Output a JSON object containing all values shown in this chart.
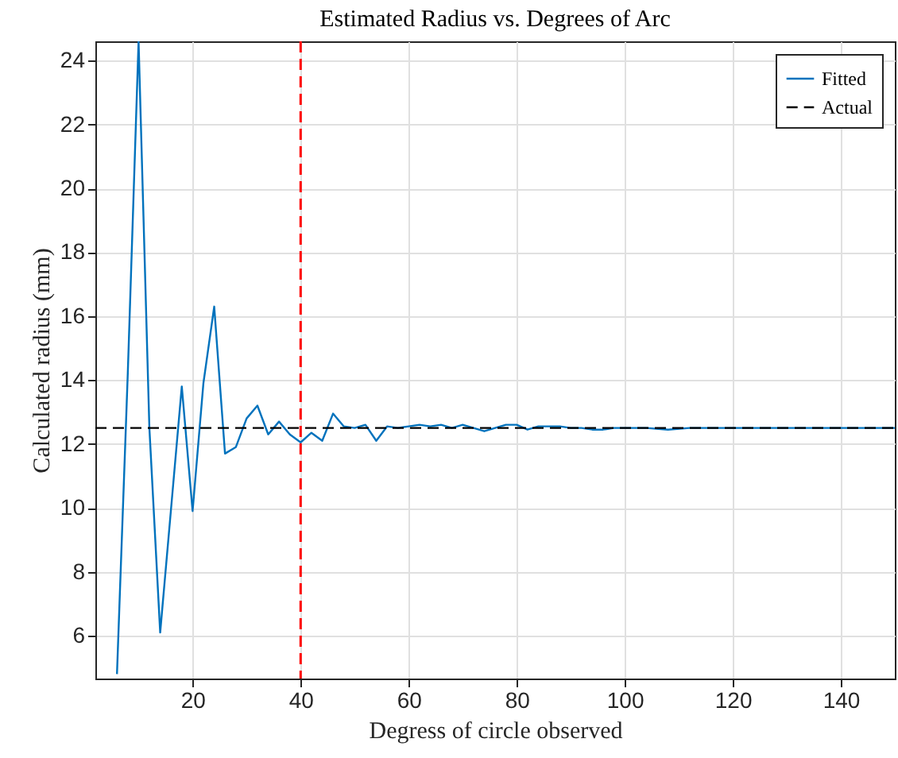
{
  "chart_data": {
    "type": "line",
    "title": "Estimated Radius vs. Degrees of Arc",
    "xlabel": "Degress of circle observed",
    "ylabel": "Calculated radius (mm)",
    "xlim": [
      2,
      150
    ],
    "ylim": [
      4.66,
      24.6
    ],
    "xticks": [
      20,
      40,
      60,
      80,
      100,
      120,
      140
    ],
    "yticks": [
      6,
      8,
      10,
      12,
      14,
      16,
      18,
      20,
      22,
      24
    ],
    "grid": true,
    "legend": "top right",
    "series": [
      {
        "name": "Fitted",
        "color": "#0072bd",
        "line_style": "solid",
        "x": [
          6,
          8,
          10,
          12,
          14,
          16,
          18,
          20,
          22,
          24,
          26,
          28,
          30,
          32,
          34,
          36,
          38,
          40,
          42,
          44,
          46,
          48,
          50,
          52,
          54,
          56,
          58,
          60,
          62,
          64,
          66,
          68,
          70,
          72,
          74,
          76,
          78,
          80,
          82,
          84,
          86,
          88,
          90,
          92,
          94,
          96,
          98,
          100,
          104,
          108,
          112,
          116,
          120,
          124,
          128,
          132,
          136,
          140,
          144,
          150
        ],
        "values": [
          4.8,
          14.2,
          24.6,
          12.5,
          6.1,
          9.95,
          13.8,
          9.9,
          13.9,
          16.3,
          11.7,
          11.9,
          12.8,
          13.2,
          12.3,
          12.7,
          12.3,
          12.05,
          12.35,
          12.1,
          12.95,
          12.55,
          12.5,
          12.6,
          12.1,
          12.55,
          12.5,
          12.55,
          12.6,
          12.55,
          12.6,
          12.5,
          12.6,
          12.5,
          12.4,
          12.5,
          12.6,
          12.6,
          12.45,
          12.55,
          12.55,
          12.55,
          12.5,
          12.5,
          12.45,
          12.45,
          12.5,
          12.5,
          12.5,
          12.45,
          12.5,
          12.5,
          12.5,
          12.5,
          12.5,
          12.5,
          12.5,
          12.5,
          12.5,
          12.5
        ]
      },
      {
        "name": "Actual",
        "color": "#000000",
        "line_style": "dashed",
        "x": [
          2,
          150
        ],
        "values": [
          12.5,
          12.5
        ]
      }
    ],
    "ref_lines": [
      {
        "axis": "x",
        "value": 40,
        "color": "#ff0000",
        "line_style": "dashed"
      }
    ]
  }
}
